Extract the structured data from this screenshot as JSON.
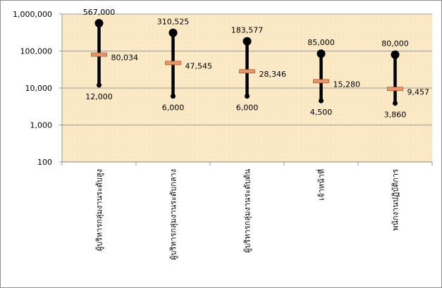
{
  "chart_data": {
    "type": "high-low-average",
    "scale": "log",
    "ylim": [
      100,
      1000000
    ],
    "yticks": [
      "1,000,000",
      "100,000",
      "10,000",
      "1,000",
      "100"
    ],
    "ytick_values": [
      1000000,
      100000,
      10000,
      1000,
      100
    ],
    "grid": true,
    "legend": "none",
    "categories": [
      "ผู้บริหารกลุ่มงานระดับสูง",
      "ผู้บริหารกลุ่มงานระดับกลาง",
      "ผู้บริหารกลุ่มงานระดับต้น",
      "เจ้าหน้าที่",
      "พนักงานปฏิบัติการ"
    ],
    "series": [
      {
        "values": [
          567000,
          310525,
          183577,
          85000,
          80000
        ],
        "labels": [
          "567,000",
          "310,525",
          "183,577",
          "85,000",
          "80,000"
        ]
      },
      {
        "values": [
          12000,
          6000,
          6000,
          4500,
          3860
        ],
        "labels": [
          "12,000",
          "6,000",
          "6,000",
          "4,500",
          "3,860"
        ]
      },
      {
        "values": [
          80034,
          47545,
          28346,
          15280,
          9457
        ],
        "labels": [
          "80,034",
          "47,545",
          "28,346",
          "15,280",
          "9,457"
        ]
      }
    ],
    "colors": {
      "plot_background": "#fcecc8",
      "range_line": "#000000",
      "marker": "#000000",
      "average_marker": "#e8966e",
      "average_marker_edge": "#b05a2e",
      "grid": "#7f7f7f"
    }
  }
}
